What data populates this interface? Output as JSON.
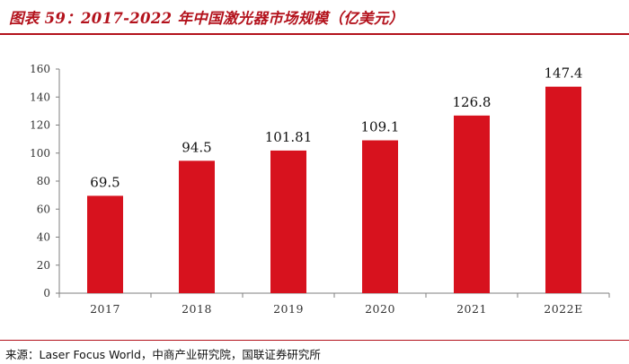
{
  "header": {
    "title": "图表 59：2017-2022 年中国激光器市场规模（亿美元）"
  },
  "footer": {
    "source": "来源：Laser Focus World，中商产业研究院，国联证券研究所"
  },
  "colors": {
    "bar": "#d7121e",
    "accent": "#b3121c"
  },
  "chart_data": {
    "type": "bar",
    "categories": [
      "2017",
      "2018",
      "2019",
      "2020",
      "2021",
      "2022E"
    ],
    "values": [
      69.5,
      94.5,
      101.81,
      109.1,
      126.8,
      147.4
    ],
    "value_labels": [
      "69.5",
      "94.5",
      "101.81",
      "109.1",
      "126.8",
      "147.4"
    ],
    "title": "",
    "xlabel": "",
    "ylabel": "",
    "ylim": [
      0,
      160
    ],
    "yticks": [
      0,
      20,
      40,
      60,
      80,
      100,
      120,
      140,
      160
    ],
    "grid": false,
    "legend": "none"
  }
}
